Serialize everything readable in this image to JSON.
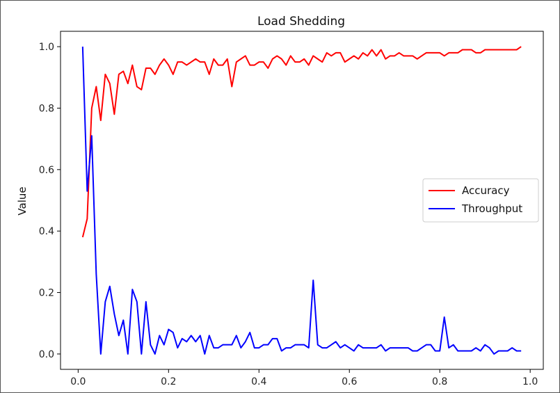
{
  "chart_data": {
    "type": "line",
    "title": "Load Shedding",
    "xlabel": "",
    "ylabel": "Value",
    "xlim": [
      -0.039,
      1.029
    ],
    "ylim": [
      -0.05,
      1.05
    ],
    "xticks": [
      "0.0",
      "0.2",
      "0.4",
      "0.6",
      "0.8",
      "1.0"
    ],
    "yticks": [
      "0.0",
      "0.2",
      "0.4",
      "0.6",
      "0.8",
      "1.0"
    ],
    "grid": false,
    "legend": "center-right",
    "x": [
      0.01,
      0.02,
      0.03,
      0.04,
      0.05,
      0.06,
      0.07,
      0.08,
      0.09,
      0.1,
      0.11,
      0.12,
      0.13,
      0.14,
      0.15,
      0.16,
      0.17,
      0.18,
      0.19,
      0.2,
      0.21,
      0.22,
      0.23,
      0.24,
      0.25,
      0.26,
      0.27,
      0.28,
      0.29,
      0.3,
      0.31,
      0.32,
      0.33,
      0.34,
      0.35,
      0.36,
      0.37,
      0.38,
      0.39,
      0.4,
      0.41,
      0.42,
      0.43,
      0.44,
      0.45,
      0.46,
      0.47,
      0.48,
      0.49,
      0.5,
      0.51,
      0.52,
      0.53,
      0.54,
      0.55,
      0.56,
      0.57,
      0.58,
      0.59,
      0.6,
      0.61,
      0.62,
      0.63,
      0.64,
      0.65,
      0.66,
      0.67,
      0.68,
      0.69,
      0.7,
      0.71,
      0.72,
      0.73,
      0.74,
      0.75,
      0.76,
      0.77,
      0.78,
      0.79,
      0.8,
      0.81,
      0.82,
      0.83,
      0.84,
      0.85,
      0.86,
      0.87,
      0.88,
      0.89,
      0.9,
      0.91,
      0.92,
      0.93,
      0.94,
      0.95,
      0.96,
      0.97,
      0.98
    ],
    "series": [
      {
        "name": "Accuracy",
        "color": "#ff0000",
        "values": [
          0.38,
          0.44,
          0.8,
          0.87,
          0.76,
          0.91,
          0.88,
          0.78,
          0.91,
          0.92,
          0.88,
          0.94,
          0.87,
          0.86,
          0.93,
          0.93,
          0.91,
          0.94,
          0.96,
          0.94,
          0.91,
          0.95,
          0.95,
          0.94,
          0.95,
          0.96,
          0.95,
          0.95,
          0.91,
          0.96,
          0.94,
          0.94,
          0.96,
          0.87,
          0.95,
          0.96,
          0.97,
          0.94,
          0.94,
          0.95,
          0.95,
          0.93,
          0.96,
          0.97,
          0.96,
          0.94,
          0.97,
          0.95,
          0.95,
          0.96,
          0.94,
          0.97,
          0.96,
          0.95,
          0.98,
          0.97,
          0.98,
          0.98,
          0.95,
          0.96,
          0.97,
          0.96,
          0.98,
          0.97,
          0.99,
          0.97,
          0.99,
          0.96,
          0.97,
          0.97,
          0.98,
          0.97,
          0.97,
          0.97,
          0.96,
          0.97,
          0.98,
          0.98,
          0.98,
          0.98,
          0.97,
          0.98,
          0.98,
          0.98,
          0.99,
          0.99,
          0.99,
          0.98,
          0.98,
          0.99,
          0.99,
          0.99,
          0.99,
          0.99,
          0.99,
          0.99,
          0.99,
          1.0
        ]
      },
      {
        "name": "Throughput",
        "color": "#0000ff",
        "values": [
          1.0,
          0.53,
          0.71,
          0.26,
          0.0,
          0.17,
          0.22,
          0.13,
          0.06,
          0.11,
          0.0,
          0.21,
          0.17,
          0.0,
          0.17,
          0.03,
          0.0,
          0.06,
          0.03,
          0.08,
          0.07,
          0.02,
          0.05,
          0.04,
          0.06,
          0.04,
          0.06,
          0.0,
          0.06,
          0.02,
          0.02,
          0.03,
          0.03,
          0.03,
          0.06,
          0.02,
          0.04,
          0.07,
          0.02,
          0.02,
          0.03,
          0.03,
          0.05,
          0.05,
          0.01,
          0.02,
          0.02,
          0.03,
          0.03,
          0.03,
          0.02,
          0.24,
          0.03,
          0.02,
          0.02,
          0.03,
          0.04,
          0.02,
          0.03,
          0.02,
          0.01,
          0.03,
          0.02,
          0.02,
          0.02,
          0.02,
          0.03,
          0.01,
          0.02,
          0.02,
          0.02,
          0.02,
          0.02,
          0.01,
          0.01,
          0.02,
          0.03,
          0.03,
          0.01,
          0.01,
          0.12,
          0.02,
          0.03,
          0.01,
          0.01,
          0.01,
          0.01,
          0.02,
          0.01,
          0.03,
          0.02,
          0.0,
          0.01,
          0.01,
          0.01,
          0.02,
          0.01,
          0.01
        ]
      }
    ]
  }
}
